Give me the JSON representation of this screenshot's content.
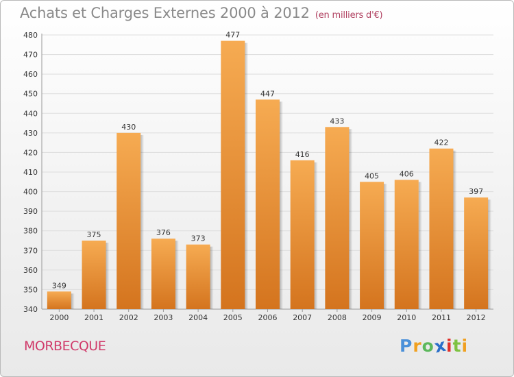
{
  "title": "Achats et Charges Externes 2000 à 2012",
  "subtitle": "(en milliers d'€)",
  "commune": "MORBECQUE",
  "logo": {
    "letters": [
      "P",
      "r",
      "o",
      "x",
      "i",
      "t",
      "i"
    ],
    "colors": [
      "#4a90d9",
      "#f0a020",
      "#5cb85c",
      "#2a6fc9",
      "#e0302a",
      "#7dc242",
      "#f0a020"
    ]
  },
  "colors": {
    "bar_light": "#f6ab52",
    "bar_dark": "#d4741e",
    "text": "#333333",
    "axis": "#999999"
  },
  "chart_data": {
    "type": "bar",
    "categories": [
      "2000",
      "2001",
      "2002",
      "2003",
      "2004",
      "2005",
      "2006",
      "2007",
      "2008",
      "2009",
      "2010",
      "2011",
      "2012"
    ],
    "values": [
      349,
      375,
      430,
      376,
      373,
      477,
      447,
      416,
      433,
      405,
      406,
      422,
      397
    ],
    "ylim": [
      340,
      480
    ],
    "yticks": [
      340,
      350,
      360,
      370,
      380,
      390,
      400,
      410,
      420,
      430,
      440,
      450,
      460,
      470,
      480
    ],
    "grid": true
  }
}
